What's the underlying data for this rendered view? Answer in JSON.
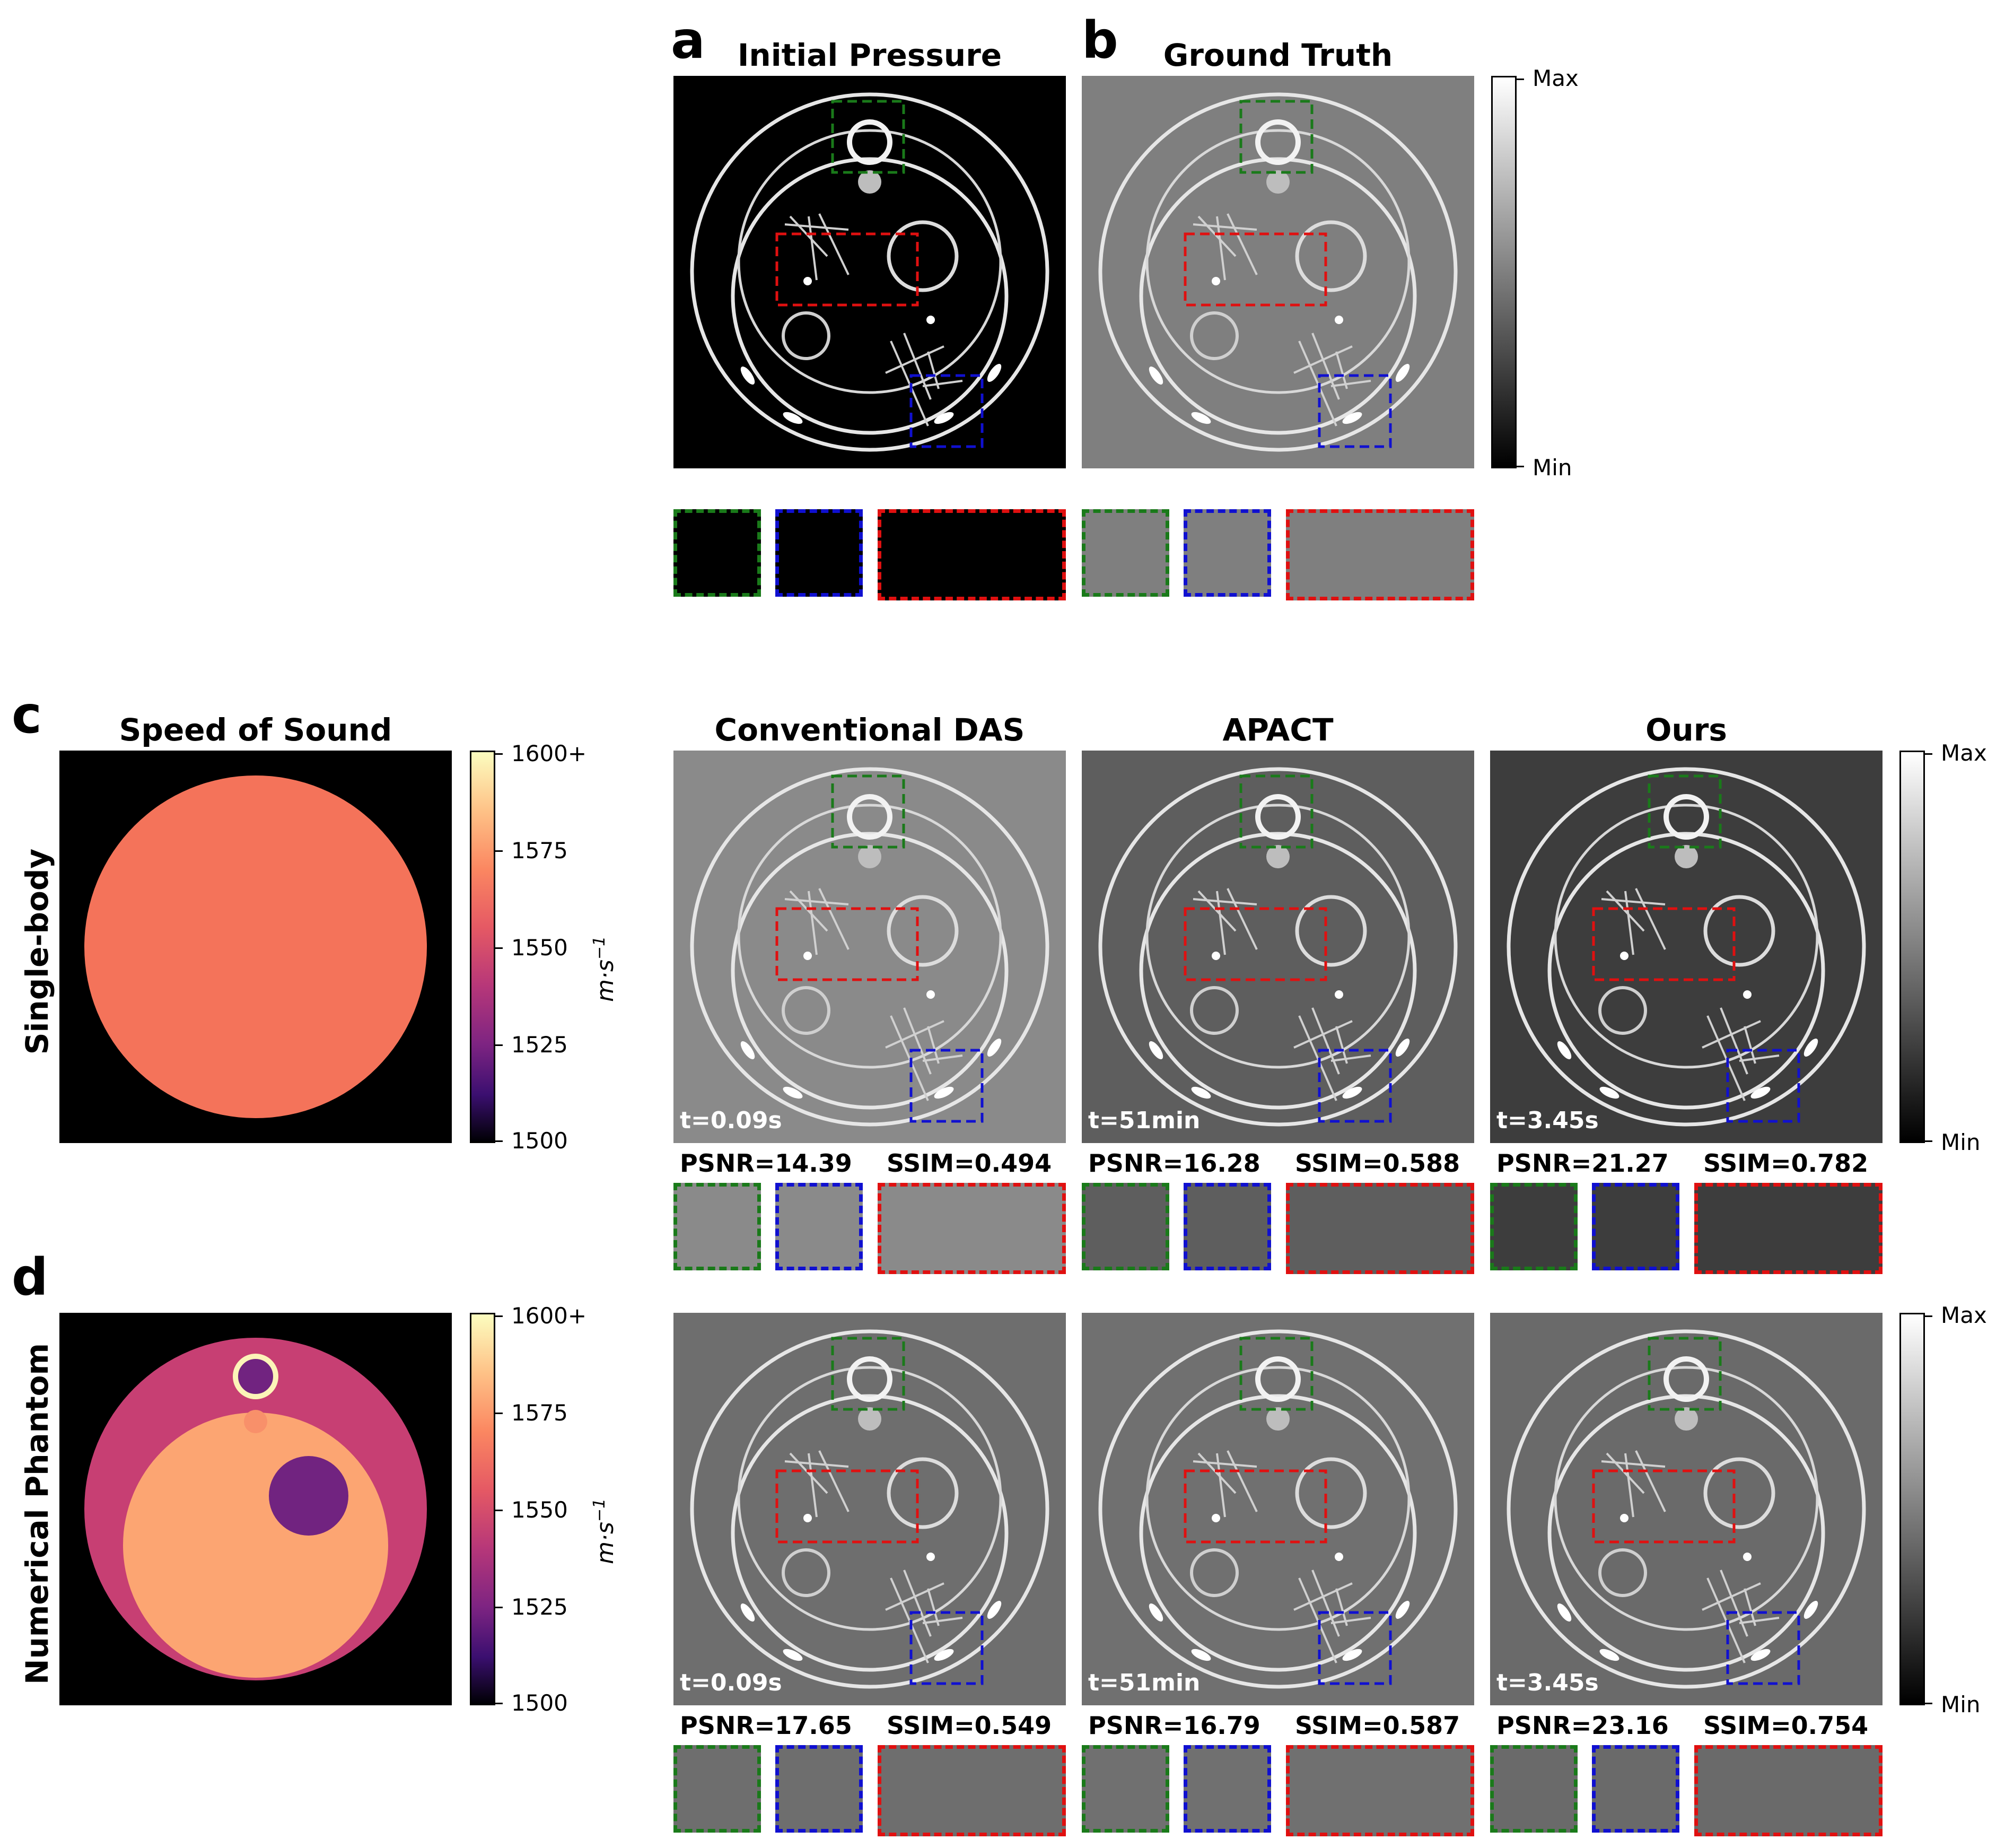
{
  "letters": {
    "a": "a",
    "b": "b",
    "c": "c",
    "d": "d"
  },
  "titles": {
    "initial_pressure": "Initial Pressure",
    "ground_truth": "Ground Truth",
    "speed_of_sound": "Speed of Sound",
    "conventional_das": "Conventional DAS",
    "apact": "APACT",
    "ours": "Ours"
  },
  "row_labels": {
    "single_body": "Single-body",
    "numerical_phantom": "Numerical Phantom"
  },
  "gray_colorbar": {
    "max": "Max",
    "min": "Min"
  },
  "sos_colorbar": {
    "ticks": [
      "1600+",
      "1575",
      "1550",
      "1525",
      "1500"
    ],
    "unit_base": "m·s",
    "unit_exp": "−1"
  },
  "rows": [
    {
      "methods": [
        {
          "time": "t=0.09s",
          "psnr": "PSNR=14.39",
          "ssim": "SSIM=0.494"
        },
        {
          "time": "t=51min",
          "psnr": "PSNR=16.28",
          "ssim": "SSIM=0.588"
        },
        {
          "time": "t=3.45s",
          "psnr": "PSNR=21.27",
          "ssim": "SSIM=0.782"
        }
      ]
    },
    {
      "methods": [
        {
          "time": "t=0.09s",
          "psnr": "PSNR=17.65",
          "ssim": "SSIM=0.549"
        },
        {
          "time": "t=51min",
          "psnr": "PSNR=16.79",
          "ssim": "SSIM=0.587"
        },
        {
          "time": "t=3.45s",
          "psnr": "PSNR=23.16",
          "ssim": "SSIM=0.754"
        }
      ]
    }
  ],
  "colors": {
    "inset_green": "#1a7a1a",
    "inset_blue": "#1010d0",
    "inset_red": "#e01010",
    "sos_body_single": "#f4735a",
    "sos_outer_phantom": "#c73f73",
    "sos_inner_phantom": "#fca572",
    "sos_blob": "#712380",
    "sos_ring": "#fcf4b8",
    "sos_small": "#f8906a"
  }
}
